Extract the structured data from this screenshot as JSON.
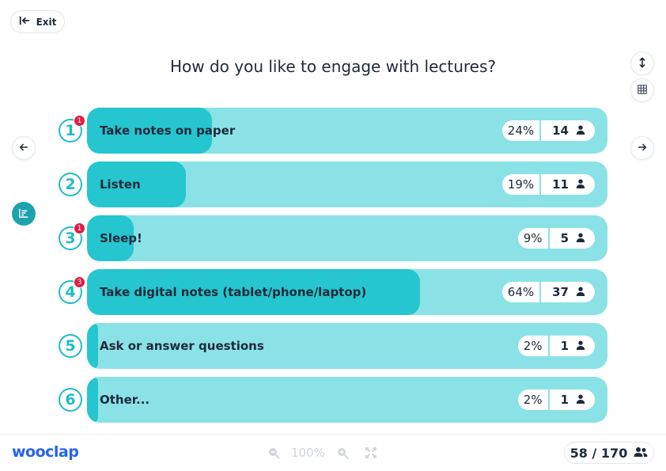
{
  "header": {
    "exit_label": "Exit"
  },
  "question": {
    "title": "How do you like to engage with lectures?"
  },
  "options": [
    {
      "number": "1",
      "label": "Take notes on paper",
      "percent": "24%",
      "count": "14",
      "badge": "1",
      "fraction": 0.24
    },
    {
      "number": "2",
      "label": "Listen",
      "percent": "19%",
      "count": "11",
      "badge": "",
      "fraction": 0.19
    },
    {
      "number": "3",
      "label": "Sleep!",
      "percent": "9%",
      "count": "5",
      "badge": "1",
      "fraction": 0.09
    },
    {
      "number": "4",
      "label": "Take digital notes (tablet/phone/laptop)",
      "percent": "64%",
      "count": "37",
      "badge": "3",
      "fraction": 0.64
    },
    {
      "number": "5",
      "label": "Ask or answer questions",
      "percent": "2%",
      "count": "1",
      "badge": "",
      "fraction": 0.02
    },
    {
      "number": "6",
      "label": "Other...",
      "percent": "2%",
      "count": "1",
      "badge": "",
      "fraction": 0.02
    }
  ],
  "footer": {
    "logo": "wooclap",
    "zoom_level": "100%",
    "participants": "58 / 170"
  },
  "colors": {
    "accent": "#25c6cf",
    "track": "#8ae2e7",
    "badge": "#e11d48",
    "brand": "#2563eb"
  },
  "icons": {
    "exit": "exit-icon",
    "prev": "arrow-left-icon",
    "next": "arrow-right-icon",
    "expand_vertical": "expand-vertical-icon",
    "grid": "grid-icon",
    "results": "bar-chart-icon",
    "user": "user-icon",
    "zoom_out": "zoom-out-icon",
    "zoom_in": "zoom-in-icon",
    "fullscreen": "fullscreen-icon",
    "participants": "participants-icon"
  }
}
